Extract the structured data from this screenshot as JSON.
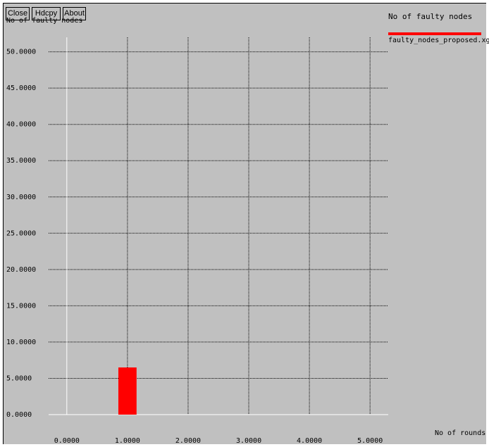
{
  "buttons": {
    "close": "Close",
    "hdcpy": "Hdcpy",
    "about": "About"
  },
  "chart_data": {
    "type": "bar",
    "title": "",
    "ylabel": "No of faulty nodes",
    "xlabel": "No of rounds",
    "x_ticks": [
      "0.0000",
      "1.0000",
      "2.0000",
      "3.0000",
      "4.0000",
      "5.0000"
    ],
    "y_ticks": [
      "0.0000",
      "5.0000",
      "10.0000",
      "15.0000",
      "20.0000",
      "25.0000",
      "30.0000",
      "35.0000",
      "40.0000",
      "45.0000",
      "50.0000"
    ],
    "xlim": [
      -0.3,
      5.3
    ],
    "ylim": [
      0,
      52
    ],
    "grid": true,
    "legend": {
      "title": "No of faulty nodes",
      "placement": "right"
    },
    "series": [
      {
        "name": "faulty_nodes_proposed.xg",
        "color": "#ff0000",
        "x": [
          1.0
        ],
        "values": [
          6.5
        ]
      }
    ]
  }
}
